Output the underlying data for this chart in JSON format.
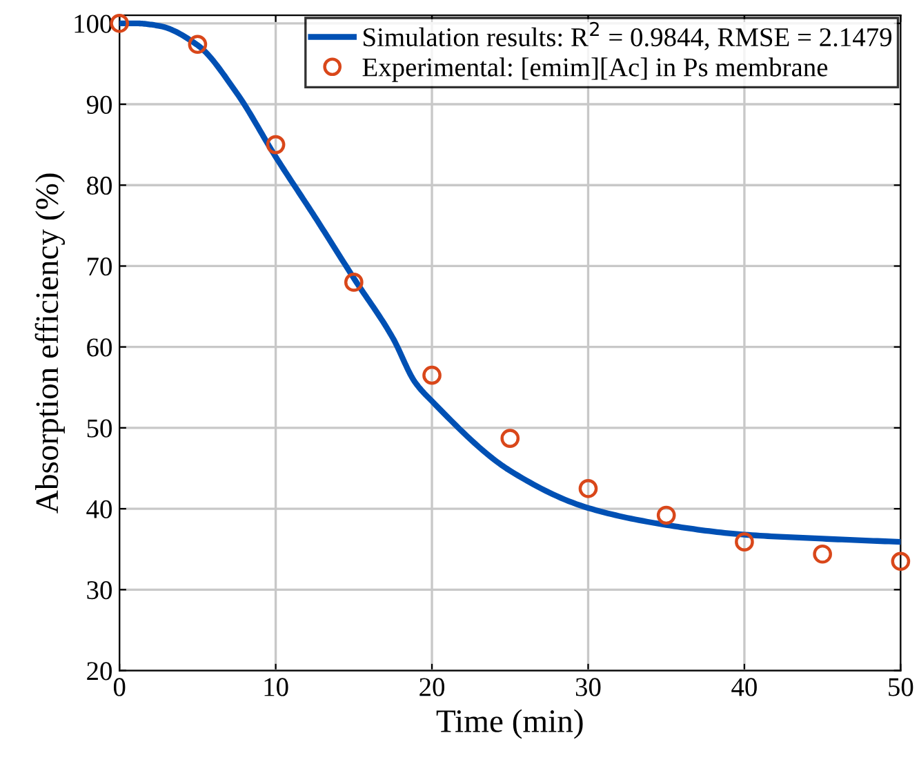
{
  "chart_data": {
    "type": "line",
    "xlabel": "Time (min)",
    "ylabel": "Absorption efficiency (%)",
    "xlim": [
      0,
      50
    ],
    "ylim": [
      20,
      101
    ],
    "xticks": [
      0,
      10,
      20,
      30,
      40,
      50
    ],
    "yticks": [
      20,
      30,
      40,
      50,
      60,
      70,
      80,
      90,
      100
    ],
    "grid": true,
    "legend": "top right",
    "series": [
      {
        "name": "Simulation results: R$^{2}$ = 0.9844, RMSE = 2.1479",
        "color": "#0050b4",
        "marker": "none",
        "line_style": "solid",
        "x": [
          0,
          1,
          2.5,
          5,
          7.5,
          10,
          12.5,
          15,
          17.5,
          18.9,
          20,
          25,
          30,
          35,
          40,
          45,
          50
        ],
        "values": [
          100,
          100,
          99.7,
          97.3,
          91.4,
          83.5,
          76.1,
          68.5,
          61.1,
          55.7,
          53.3,
          44.7,
          40.1,
          38,
          36.8,
          36.3,
          35.9
        ]
      },
      {
        "name": "Experimental: [emim][Ac] in Ps membrane",
        "type": "scatter",
        "color": "#d9471a",
        "marker": "circle",
        "x": [
          0,
          5,
          10,
          15,
          20,
          25,
          30,
          35,
          40,
          45,
          50
        ],
        "values": [
          100,
          97.4,
          85,
          68,
          56.5,
          48.7,
          42.5,
          39.2,
          35.9,
          34.4,
          33.5
        ]
      }
    ]
  }
}
